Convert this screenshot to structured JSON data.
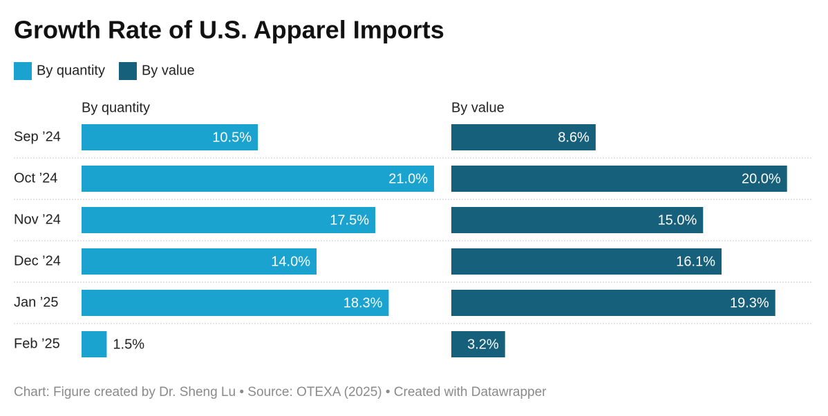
{
  "chart_data": {
    "type": "bar",
    "title": "Growth Rate of U.S. Apparel Imports",
    "categories": [
      "Sep ’24",
      "Oct ’24",
      "Nov ’24",
      "Dec ’24",
      "Jan ’25",
      "Feb ’25"
    ],
    "series": [
      {
        "name": "By quantity",
        "color": "#1ba3cf",
        "values": [
          10.5,
          21.0,
          17.5,
          14.0,
          18.3,
          1.5
        ],
        "value_labels": [
          "10.5%",
          "21.0%",
          "17.5%",
          "14.0%",
          "18.3%",
          "1.5%"
        ]
      },
      {
        "name": "By value",
        "color": "#17607b",
        "values": [
          8.6,
          20.0,
          15.0,
          16.1,
          19.3,
          3.2
        ],
        "value_labels": [
          "8.6%",
          "20.0%",
          "15.0%",
          "16.1%",
          "19.3%",
          "3.2%"
        ]
      }
    ],
    "source": "Chart: Figure created by Dr. Sheng Lu • Source: OTEXA (2025) • Created with Datawrapper"
  }
}
